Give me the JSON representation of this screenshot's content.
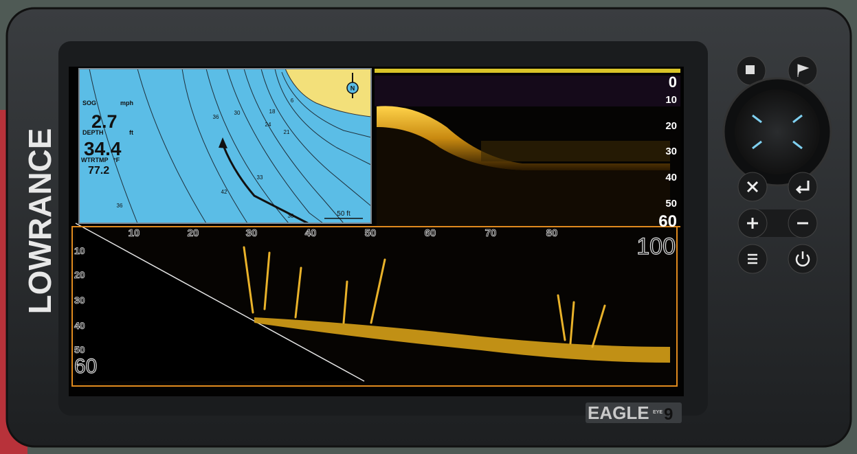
{
  "device": {
    "brand": "LOWRANCE",
    "model": "EAGLE",
    "model_sub": "EYE",
    "model_number": "9"
  },
  "map": {
    "readouts": [
      {
        "label": "SOG",
        "unit": "mph",
        "value": "2.7"
      },
      {
        "label": "DEPTH",
        "unit": "ft",
        "value": "34.4"
      },
      {
        "label": "WTRTMP",
        "unit": "°F",
        "value": "77.2"
      }
    ],
    "north": "N",
    "depth_labels": [
      "6",
      "18",
      "36",
      "30",
      "24",
      "21",
      "33",
      "42",
      "36",
      "30"
    ],
    "scale": "50 ft"
  },
  "sonar": {
    "depth_scale": [
      "0",
      "10",
      "20",
      "30",
      "40",
      "50"
    ],
    "range": "60"
  },
  "side_scan": {
    "distance_scale": [
      "10",
      "20",
      "30",
      "40",
      "50",
      "60",
      "70",
      "80"
    ],
    "range": "100",
    "depth_scale": [
      "10",
      "20",
      "30",
      "40",
      "50"
    ],
    "depth_range": "60"
  }
}
